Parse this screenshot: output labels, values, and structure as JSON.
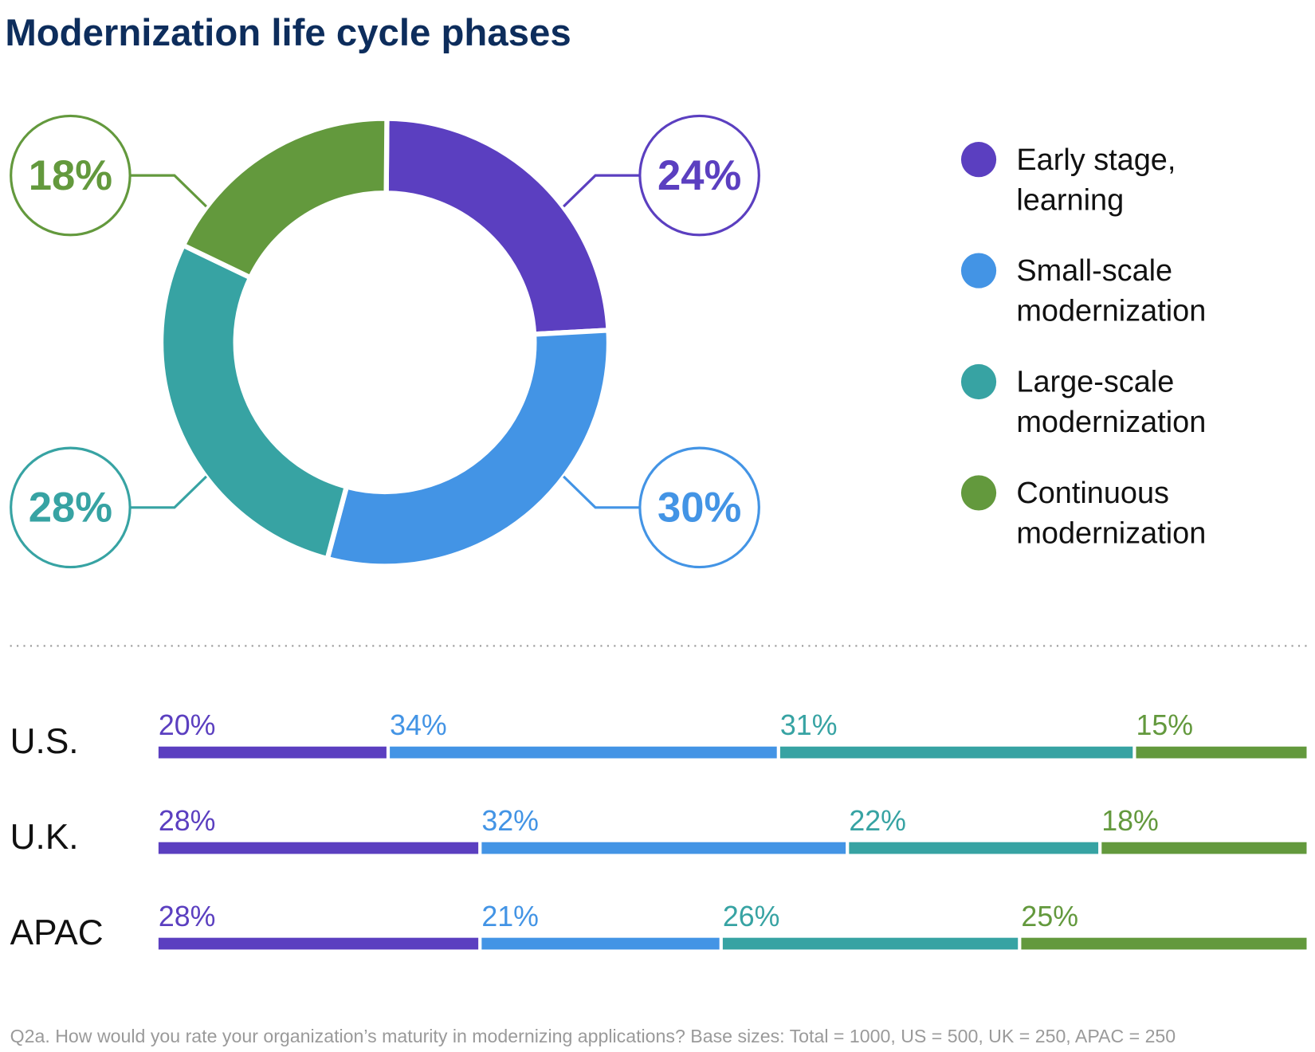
{
  "colors": {
    "title": "#0d2d5c",
    "early": "#5b3fc0",
    "small": "#4394e5",
    "large": "#37a3a3",
    "continuous": "#63993d",
    "footnote": "#9a9a9a"
  },
  "chart_data": [
    {
      "type": "pie",
      "title": "Modernization life cycle phases",
      "donut": true,
      "legend_position": "right",
      "categories": [
        "Early stage, learning",
        "Small-scale modernization",
        "Large-scale modernization",
        "Continuous modernization"
      ],
      "values": [
        24,
        30,
        28,
        18
      ],
      "labels": [
        "24%",
        "30%",
        "28%",
        "18%"
      ],
      "legend": [
        {
          "line1": "Early stage,",
          "line2": "learning"
        },
        {
          "line1": "Small-scale",
          "line2": "modernization"
        },
        {
          "line1": "Large-scale",
          "line2": "modernization"
        },
        {
          "line1": "Continuous",
          "line2": "modernization"
        }
      ]
    },
    {
      "type": "bar",
      "stacked": true,
      "orientation": "horizontal",
      "categories": [
        "U.S.",
        "U.K.",
        "APAC"
      ],
      "series": [
        {
          "values": [
            20,
            28,
            28
          ],
          "labels": [
            "20%",
            "28%",
            "28%"
          ]
        },
        {
          "values": [
            34,
            32,
            21
          ],
          "labels": [
            "34%",
            "32%",
            "21%"
          ]
        },
        {
          "values": [
            31,
            22,
            26
          ],
          "labels": [
            "31%",
            "22%",
            "26%"
          ]
        },
        {
          "values": [
            15,
            18,
            25
          ],
          "labels": [
            "15%",
            "18%",
            "25%"
          ]
        }
      ]
    }
  ],
  "footnote": "Q2a. How would you rate your organization’s maturity in modernizing applications? Base sizes: Total = 1000, US = 500, UK = 250, APAC = 250"
}
